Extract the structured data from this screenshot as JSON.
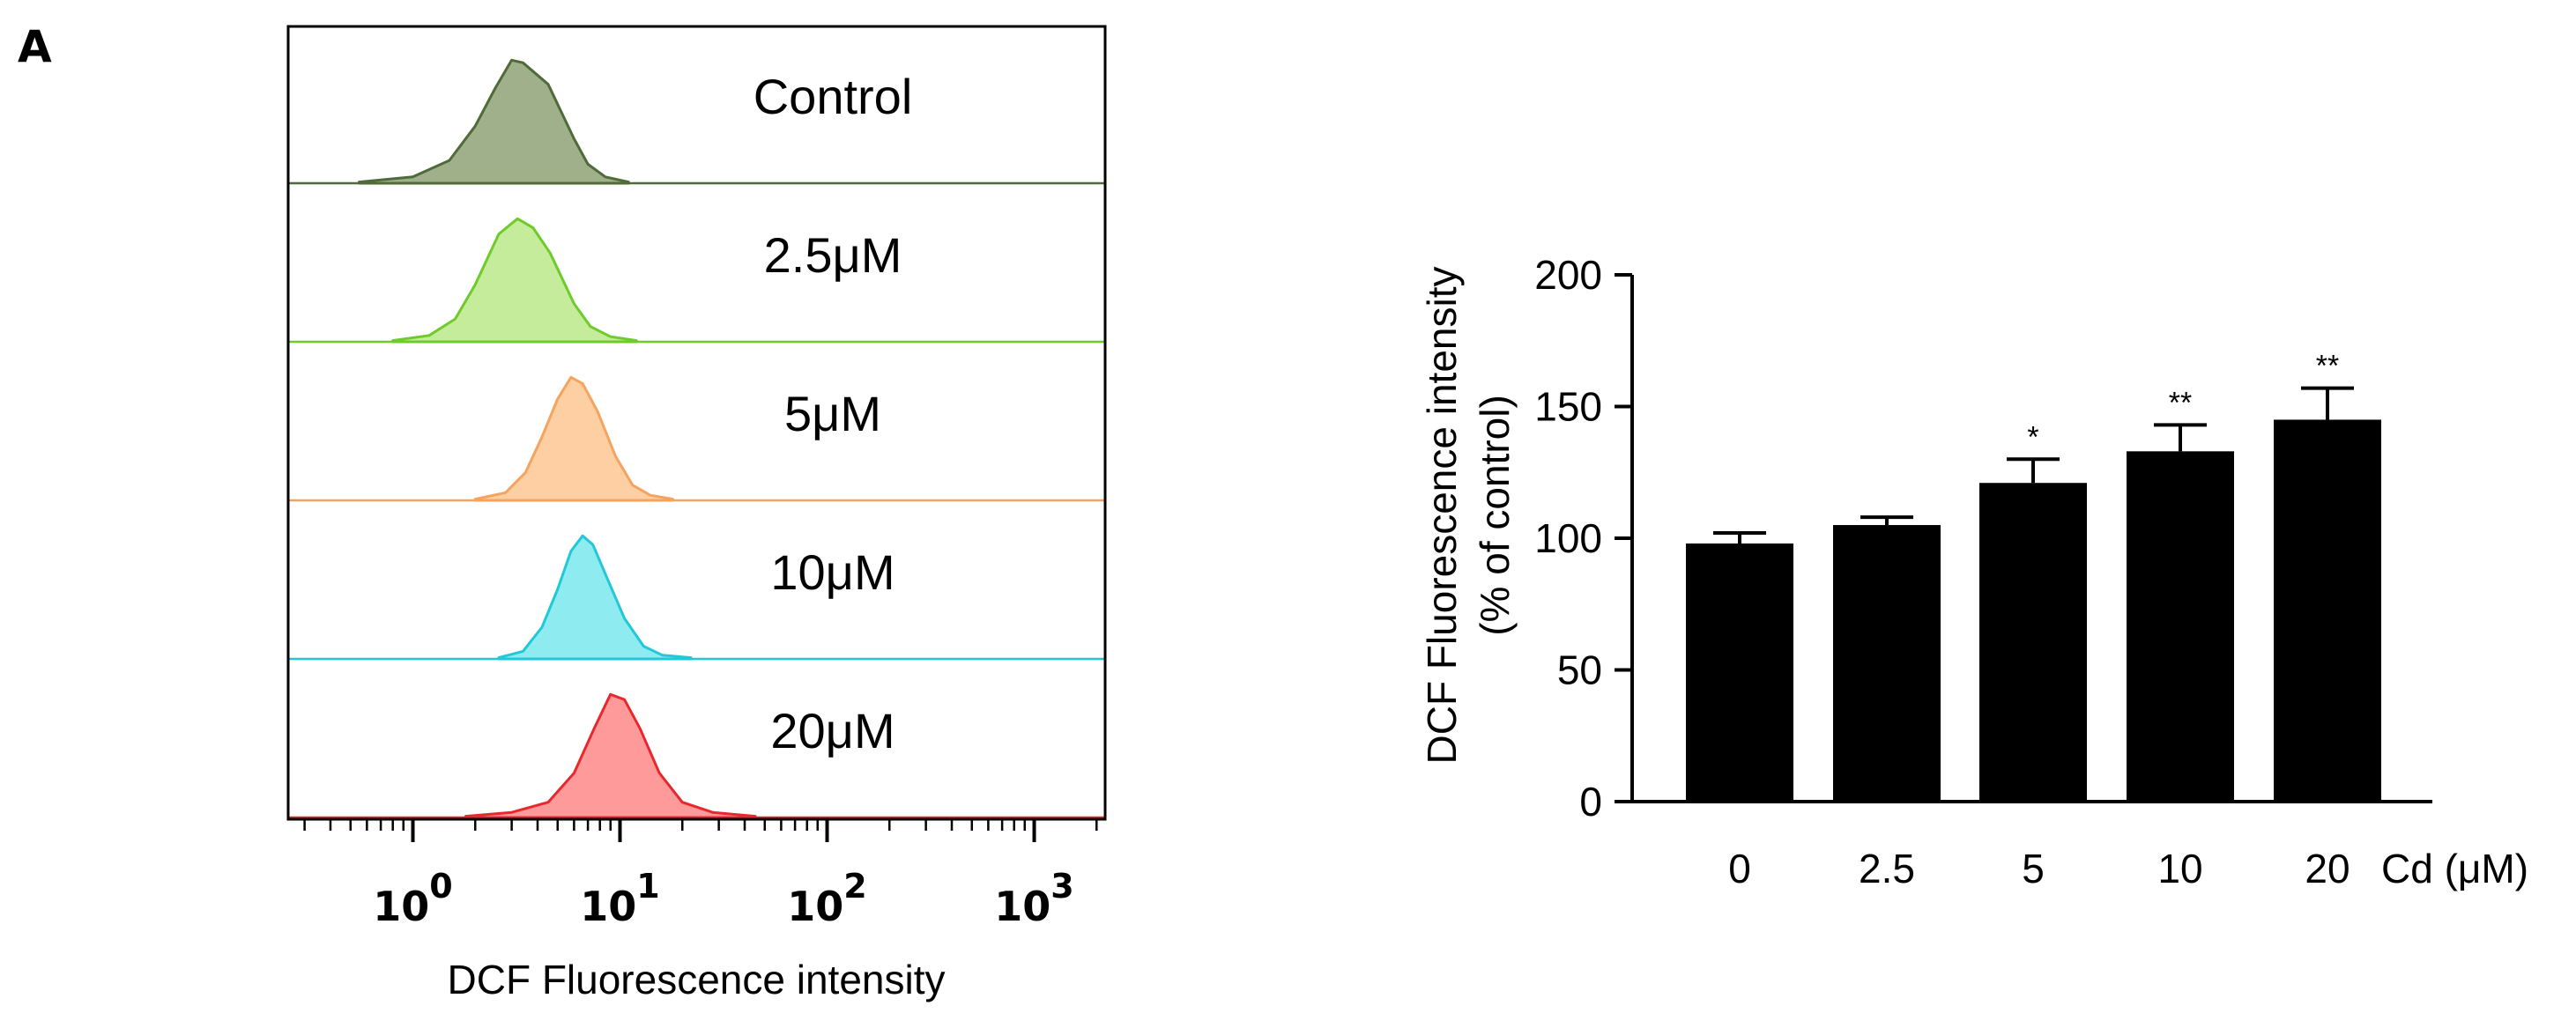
{
  "figure": {
    "panel_label": "A"
  },
  "chart_data": [
    {
      "type": "area",
      "xlabel": "DCF Fluorescence intensity",
      "x_scale": "log",
      "xlim": [
        0.25,
        2200
      ],
      "tick_labels": [
        {
          "base": "10",
          "exp": "0"
        },
        {
          "base": "10",
          "exp": "1"
        },
        {
          "base": "10",
          "exp": "2"
        },
        {
          "base": "10",
          "exp": "3"
        }
      ],
      "series": [
        {
          "name": "Control",
          "color": "#4f6b3a",
          "fill": "#9fb08a",
          "x": [
            0.55,
            1.0,
            1.5,
            2.0,
            2.5,
            3.0,
            3.4,
            4.5,
            6.0,
            7.0,
            8.5,
            11
          ],
          "y": [
            0.01,
            0.05,
            0.18,
            0.45,
            0.75,
            0.97,
            0.95,
            0.78,
            0.35,
            0.15,
            0.05,
            0.01
          ]
        },
        {
          "name": "2.5μM",
          "color": "#6ecb2a",
          "fill": "#c5ec9a",
          "x": [
            0.8,
            1.2,
            1.6,
            2.0,
            2.6,
            3.2,
            3.8,
            4.6,
            6.0,
            7.2,
            9,
            12
          ],
          "y": [
            0.01,
            0.05,
            0.18,
            0.45,
            0.85,
            0.97,
            0.9,
            0.7,
            0.3,
            0.12,
            0.04,
            0.01
          ]
        },
        {
          "name": "5μM",
          "color": "#f4a460",
          "fill": "#fdcfa2",
          "x": [
            2.0,
            2.8,
            3.5,
            4.2,
            5.0,
            5.8,
            6.6,
            7.8,
            9.5,
            11.5,
            14,
            18
          ],
          "y": [
            0.01,
            0.06,
            0.22,
            0.5,
            0.8,
            0.97,
            0.92,
            0.7,
            0.35,
            0.12,
            0.04,
            0.01
          ]
        },
        {
          "name": "10μM",
          "color": "#22c8d6",
          "fill": "#8eebf0",
          "x": [
            2.6,
            3.4,
            4.2,
            5.0,
            5.8,
            6.6,
            7.4,
            8.6,
            10.5,
            13,
            16,
            22
          ],
          "y": [
            0.01,
            0.06,
            0.25,
            0.55,
            0.85,
            0.97,
            0.9,
            0.65,
            0.32,
            0.1,
            0.03,
            0.01
          ]
        },
        {
          "name": "20μM",
          "color": "#e8282f",
          "fill": "#ff9a9a",
          "x": [
            1.8,
            3.0,
            4.5,
            6.0,
            7.5,
            9.0,
            10.5,
            12.5,
            15.5,
            20,
            28,
            45
          ],
          "y": [
            0.01,
            0.04,
            0.12,
            0.35,
            0.7,
            0.97,
            0.93,
            0.7,
            0.35,
            0.12,
            0.04,
            0.01
          ]
        }
      ]
    },
    {
      "type": "bar",
      "ylabel_line1": "DCF Fluorescence intensity",
      "ylabel_line2": "(% of control)",
      "x_unit_label": "Cd (μM)",
      "categories": [
        "0",
        "2.5",
        "5",
        "10",
        "20"
      ],
      "values": [
        98,
        105,
        121,
        133,
        145
      ],
      "errors": [
        4,
        3,
        9,
        10,
        12
      ],
      "significance": [
        "",
        "",
        "*",
        "**",
        "**"
      ],
      "ylim": [
        0,
        200
      ],
      "yticks": [
        "0",
        "50",
        "100",
        "150",
        "200"
      ],
      "bar_color": "#000000"
    }
  ]
}
